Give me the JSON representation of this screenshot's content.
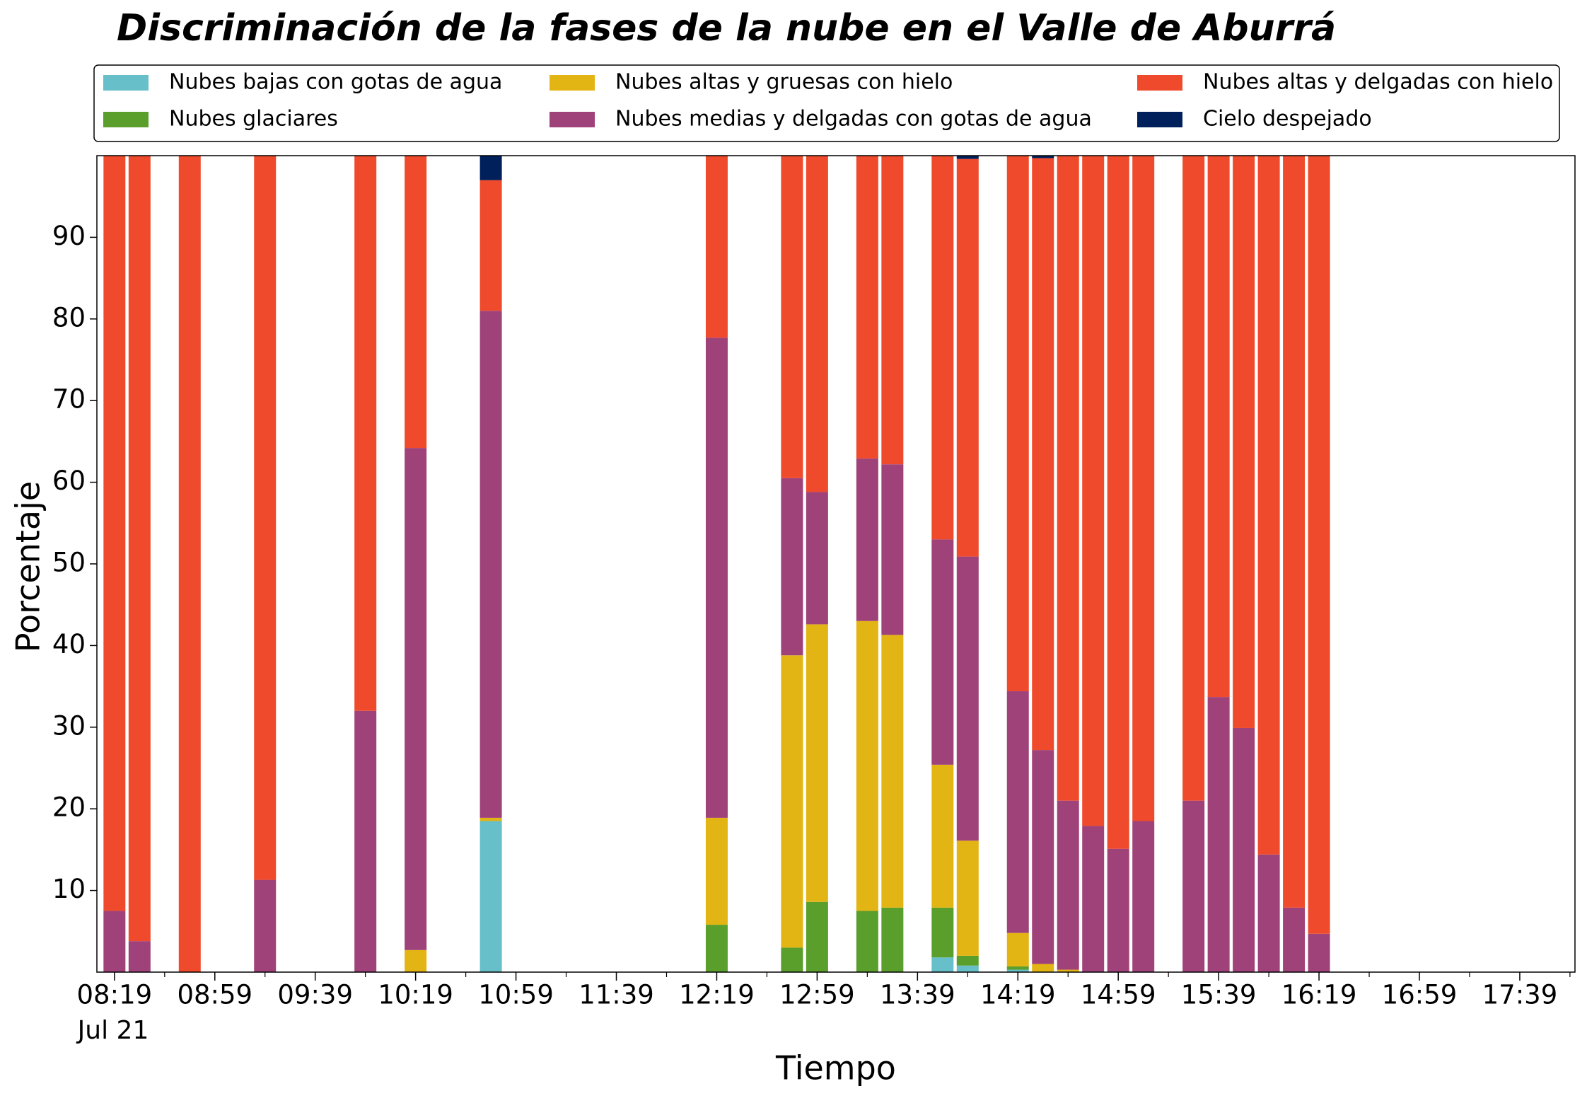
{
  "chart_data": {
    "type": "stacked_bar",
    "title": "Discriminación de la fases de la nube en el Valle de Aburrá",
    "xlabel": "Tiempo",
    "ylabel": "Porcentaje",
    "x_date_label": "Jul 21",
    "x": [
      "08:19",
      "08:29",
      "08:49",
      "09:19",
      "09:59",
      "10:19",
      "10:49",
      "12:19",
      "12:49",
      "12:59",
      "13:19",
      "13:29",
      "13:49",
      "13:59",
      "14:19",
      "14:29",
      "14:39",
      "14:49",
      "14:59",
      "15:09",
      "15:29",
      "15:39",
      "15:49",
      "15:59",
      "16:09",
      "16:19"
    ],
    "xlim": [
      "08:12",
      "18:01"
    ],
    "xticks": [
      "08:19",
      "08:59",
      "09:39",
      "10:19",
      "10:59",
      "11:39",
      "12:19",
      "12:59",
      "13:39",
      "14:19",
      "14:59",
      "15:39",
      "16:19",
      "16:59",
      "17:39"
    ],
    "xminor_ticks": [
      "08:39",
      "09:19",
      "09:59",
      "10:39",
      "11:19",
      "11:59",
      "12:39",
      "13:19",
      "13:59",
      "14:39",
      "15:19",
      "15:59",
      "16:39",
      "17:19",
      "17:59"
    ],
    "ylim": [
      0,
      100
    ],
    "yticks": [
      10,
      20,
      30,
      40,
      50,
      60,
      70,
      80,
      90
    ],
    "legend": "top-outside",
    "series": [
      {
        "name": "Nubes bajas con gotas de agua",
        "color": "#67bfca",
        "values": [
          0,
          0,
          0,
          0,
          0,
          0,
          18.5,
          0,
          0,
          0,
          0,
          0,
          1.8,
          0.8,
          0.3,
          0,
          0,
          0,
          0,
          0,
          0,
          0,
          0,
          0,
          0,
          0
        ]
      },
      {
        "name": "Nubes glaciares",
        "color": "#5a9e2b",
        "values": [
          0,
          0,
          0,
          0,
          0,
          0,
          0,
          5.8,
          3,
          8.6,
          7.5,
          7.9,
          6.1,
          1.2,
          0.4,
          0,
          0,
          0,
          0,
          0,
          0,
          0,
          0,
          0,
          0,
          0
        ]
      },
      {
        "name": "Nubes altas y gruesas con hielo",
        "color": "#e3b514",
        "values": [
          0,
          0,
          0,
          0,
          0,
          2.7,
          0.4,
          13.1,
          35.8,
          34,
          35.5,
          33.4,
          17.5,
          14.1,
          4.1,
          1,
          0.3,
          0,
          0,
          0,
          0,
          0,
          0,
          0,
          0,
          0
        ]
      },
      {
        "name": "Nubes medias y delgadas con gotas de agua",
        "color": "#a0427a",
        "values": [
          7.5,
          3.8,
          0,
          11.3,
          32,
          61.5,
          62.1,
          58.8,
          21.7,
          16.2,
          19.9,
          20.9,
          27.6,
          34.8,
          29.6,
          26.2,
          20.7,
          17.9,
          15.1,
          18.5,
          21,
          33.7,
          29.9,
          14.4,
          7.9,
          4.7
        ]
      },
      {
        "name": "Nubes altas y delgadas con hielo",
        "color": "#ef4a2b",
        "values": [
          92.5,
          96.2,
          100,
          88.7,
          68,
          35.8,
          16,
          22.3,
          39.5,
          41.2,
          37.1,
          37.8,
          47,
          48.7,
          65.6,
          72.5,
          79,
          82.1,
          84.9,
          81.5,
          79,
          66.3,
          70.1,
          85.6,
          92.1,
          95.3
        ]
      },
      {
        "name": "Cielo despejado",
        "color": "#00205b",
        "values": [
          0,
          0,
          0,
          0,
          0,
          0,
          3,
          0,
          0,
          0,
          0,
          0,
          0,
          0.4,
          0,
          0.3,
          0,
          0,
          0,
          0,
          0,
          0,
          0,
          0,
          0,
          0
        ]
      }
    ]
  }
}
